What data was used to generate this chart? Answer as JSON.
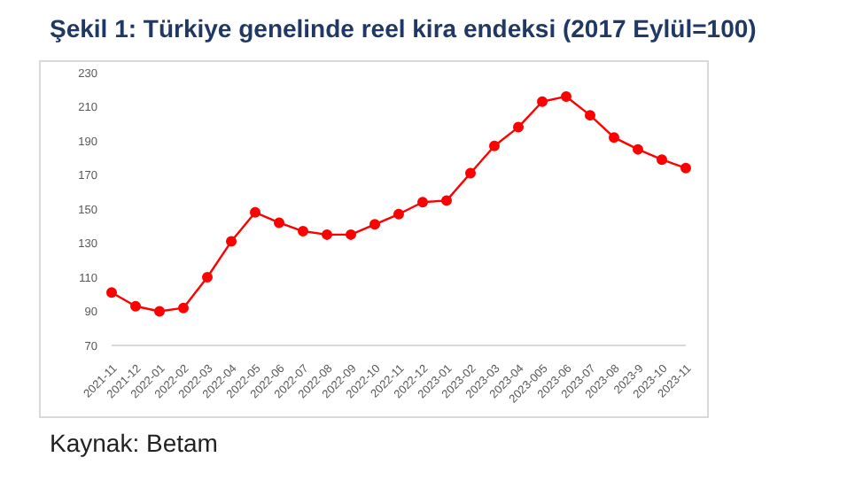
{
  "chart_data": {
    "type": "line",
    "title": "Şekil 1: Türkiye genelinde reel kira endeksi (2017 Eylül=100)",
    "categories": [
      "2021-11",
      "2021-12",
      "2022-01",
      "2022-02",
      "2022-03",
      "2022-04",
      "2022-05",
      "2022-06",
      "2022-07",
      "2022-08",
      "2022-09",
      "2022-10",
      "2022-11",
      "2022-12",
      "2023-01",
      "2023-02",
      "2023-03",
      "2023-04",
      "2023-005",
      "2023-06",
      "2023-07",
      "2023-08",
      "2023-9",
      "2023-10",
      "2023-11"
    ],
    "series": [
      {
        "color": "#ff0000",
        "values": [
          101,
          93,
          90,
          92,
          110,
          131,
          148,
          142,
          137,
          135,
          135,
          141,
          147,
          154,
          155,
          171,
          187,
          198,
          213,
          216,
          205,
          192,
          185,
          179,
          174
        ]
      }
    ],
    "ylim": [
      70,
      230
    ],
    "yticks": [
      70,
      90,
      110,
      130,
      150,
      170,
      190,
      210,
      230
    ],
    "grid": false,
    "marker": "circle",
    "line_style": "solid",
    "annotations": [
      "Kaynak: Betam"
    ]
  }
}
